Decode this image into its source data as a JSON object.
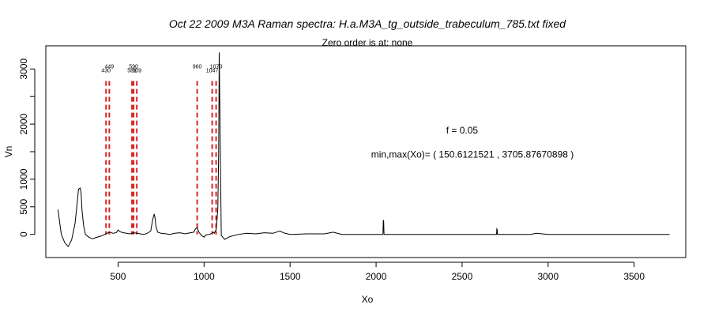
{
  "chart_data": {
    "type": "line",
    "title": "Oct 22 2009 M3A Raman spectra: H.a.M3A_tg_outside_trabeculum_785.txt fixed",
    "subtitle": "Zero order is at:  none",
    "xlabel": "Xo",
    "ylabel": "Vn",
    "xlim": [
      80,
      3800
    ],
    "ylim": [
      -420,
      3420
    ],
    "xticks": [
      500,
      1000,
      1500,
      2000,
      2500,
      3000,
      3500
    ],
    "yticks": [
      0,
      500,
      1000,
      2000,
      3000
    ],
    "grid": false,
    "annotations": [
      {
        "text": "f =  0.05",
        "x": 2500,
        "y": 1830
      },
      {
        "text": "min,max(Xo)= ( 150.6121521 , 3705.87670898 )",
        "x": 2560,
        "y": 1390
      }
    ],
    "peaks": [
      {
        "x": 430,
        "label": "430"
      },
      {
        "x": 449,
        "label": "449"
      },
      {
        "x": 581,
        "label": "581"
      },
      {
        "x": 590,
        "label": "590"
      },
      {
        "x": 609,
        "label": "609"
      },
      {
        "x": 960,
        "label": "960"
      },
      {
        "x": 1047,
        "label": "1047"
      },
      {
        "x": 1070,
        "label": "1070"
      }
    ],
    "peak_line_color": "#dd2222",
    "series": [
      {
        "color": "#000000",
        "x": [
          150.6,
          170,
          190,
          210,
          230,
          250,
          260,
          270,
          280,
          285,
          290,
          300,
          310,
          330,
          350,
          370,
          390,
          410,
          430,
          450,
          470,
          490,
          500,
          510,
          530,
          550,
          570,
          590,
          610,
          630,
          650,
          670,
          690,
          700,
          710,
          715,
          720,
          730,
          750,
          780,
          800,
          830,
          860,
          890,
          920,
          940,
          950,
          960,
          970,
          985,
          1000,
          1010,
          1030,
          1047,
          1055,
          1060,
          1065,
          1070,
          1072,
          1075,
          1080,
          1085,
          1088,
          1092,
          1100,
          1120,
          1150,
          1200,
          1250,
          1300,
          1350,
          1400,
          1440,
          1470,
          1500,
          1600,
          1700,
          1750,
          1800,
          1900,
          2000,
          2040,
          2042,
          2044,
          2046,
          2048,
          2100,
          2200,
          2400,
          2600,
          2700,
          2702,
          2704,
          2706,
          2708,
          2800,
          2900,
          2930,
          3000,
          3200,
          3400,
          3600,
          3705.9
        ],
        "values": [
          450,
          0,
          -150,
          -220,
          -100,
          200,
          500,
          820,
          840,
          750,
          450,
          150,
          0,
          -50,
          -80,
          -60,
          -40,
          -20,
          10,
          40,
          20,
          30,
          80,
          50,
          30,
          20,
          10,
          30,
          20,
          10,
          0,
          20,
          60,
          250,
          370,
          300,
          150,
          40,
          20,
          10,
          0,
          20,
          30,
          10,
          30,
          40,
          100,
          120,
          40,
          -20,
          -50,
          -10,
          0,
          20,
          40,
          20,
          60,
          80,
          160,
          250,
          480,
          1500,
          3300,
          2200,
          -20,
          -90,
          -40,
          0,
          20,
          10,
          30,
          20,
          60,
          20,
          0,
          10,
          10,
          40,
          0,
          0,
          0,
          0,
          260,
          240,
          10,
          0,
          0,
          0,
          0,
          0,
          0,
          100,
          90,
          0,
          0,
          0,
          0,
          20,
          0,
          0,
          0,
          0,
          0
        ]
      }
    ]
  }
}
